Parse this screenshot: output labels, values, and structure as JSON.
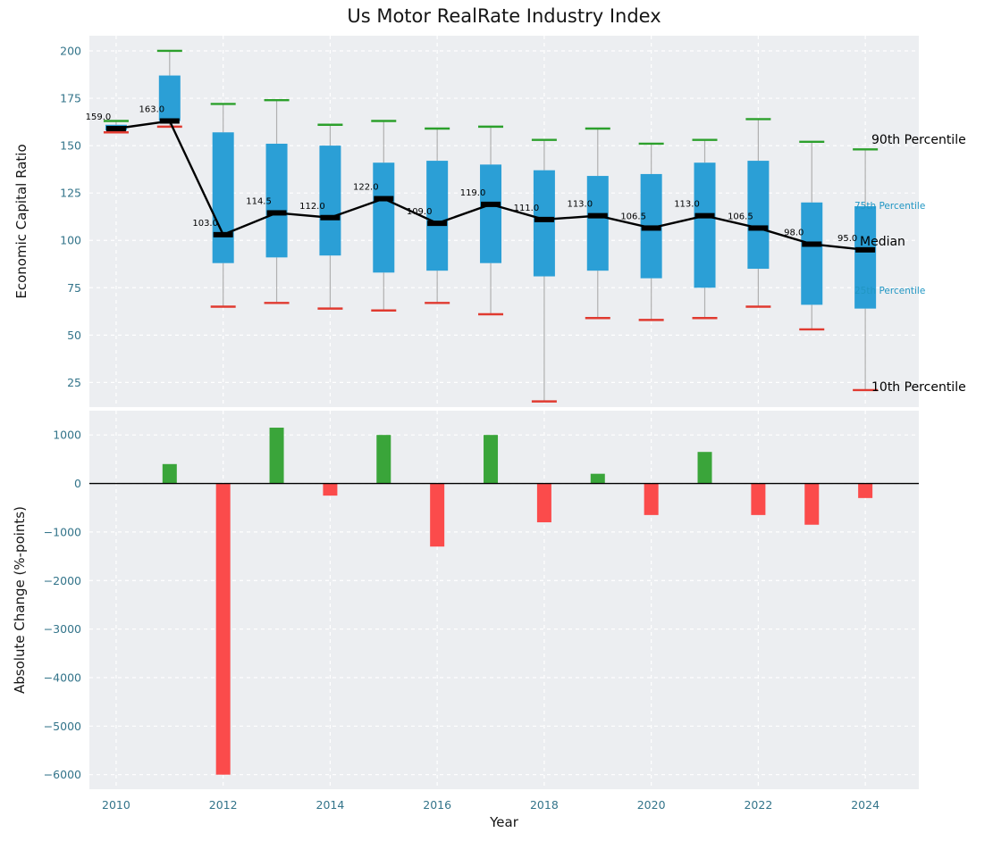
{
  "title": "Us Motor RealRate Industry Index",
  "colors": {
    "figure_bg": "#ffffff",
    "axes_bg": "#eceef1",
    "grid": "#ffffff",
    "box_fill": "#2b9fd6",
    "whisker": "#b0b0b0",
    "cap_90th": "#2ca02c",
    "cap_10th": "#e03a30",
    "median_line": "#000000",
    "bar_positive": "#3aa53a",
    "bar_negative": "#fb4b4b",
    "zero_line": "#000000",
    "tick_label": "#33748a",
    "annotation_teal": "#2196c3",
    "annotation_black": "#000000"
  },
  "chart_data": [
    {
      "type": "boxplot+line",
      "title": "Us Motor RealRate Industry Index",
      "ylabel": "Economic Capital Ratio",
      "x": [
        2010,
        2011,
        2012,
        2013,
        2014,
        2015,
        2016,
        2017,
        2018,
        2019,
        2020,
        2021,
        2022,
        2023,
        2024
      ],
      "percentiles": {
        "p10": [
          157,
          160,
          65,
          67,
          64,
          63,
          67,
          61,
          15,
          59,
          58,
          59,
          65,
          53,
          21
        ],
        "p25": [
          158,
          163,
          88,
          91,
          92,
          83,
          84,
          88,
          81,
          84,
          80,
          75,
          85,
          66,
          64
        ],
        "median": [
          159,
          163,
          103,
          114.5,
          112,
          122,
          109,
          119,
          111,
          113,
          106.5,
          113,
          106.5,
          98,
          95
        ],
        "p75": [
          161,
          187,
          157,
          151,
          150,
          141,
          142,
          140,
          137,
          134,
          135,
          141,
          142,
          120,
          118
        ],
        "p90": [
          163,
          200,
          172,
          174,
          161,
          163,
          159,
          160,
          153,
          159,
          151,
          153,
          164,
          152,
          148
        ]
      },
      "median_labels": [
        "159.0",
        "163.0",
        "103.0",
        "114.5",
        "112.0",
        "122.0",
        "109.0",
        "119.0",
        "111.0",
        "113.0",
        "106.5",
        "113.0",
        "106.5",
        "98.0",
        "95.0"
      ],
      "yticks": [
        25,
        50,
        75,
        100,
        125,
        150,
        175,
        200
      ],
      "ylim": [
        12,
        208
      ],
      "grid": true,
      "legend_position": "none",
      "annotations": {
        "p90": "90th Percentile",
        "p75": "75th Percentile",
        "median": "Median",
        "p25": "25th Percentile",
        "p10": "10th Percentile"
      }
    },
    {
      "type": "bar",
      "ylabel": "Absolute Change (%-points)",
      "xlabel": "Year",
      "x": [
        2010,
        2011,
        2012,
        2013,
        2014,
        2015,
        2016,
        2017,
        2018,
        2019,
        2020,
        2021,
        2022,
        2023,
        2024
      ],
      "values": [
        0,
        400,
        -6000,
        1150,
        -250,
        1000,
        -1300,
        1000,
        -800,
        200,
        -650,
        650,
        -650,
        -850,
        -300
      ],
      "yticks": [
        1000,
        0,
        -1000,
        -2000,
        -3000,
        -4000,
        -5000,
        -6000
      ],
      "ylim": [
        -6300,
        1500
      ],
      "xticks": [
        2010,
        2012,
        2014,
        2016,
        2018,
        2020,
        2022,
        2024
      ],
      "grid": true
    }
  ]
}
